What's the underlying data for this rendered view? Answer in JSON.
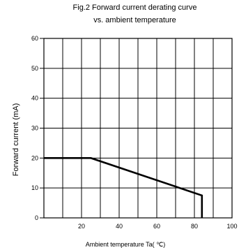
{
  "chart_data": {
    "type": "line",
    "title": "Fig.2  Forward current derating curve",
    "subtitle": "vs. ambient temperature",
    "xlabel": "Ambient temperature Ta( ℃)",
    "ylabel": "Forward current (mA)",
    "xlim": [
      0,
      100
    ],
    "ylim": [
      0,
      60
    ],
    "x_ticks": [
      20,
      40,
      60,
      80,
      100
    ],
    "x_tick_labels": [
      "20",
      "40",
      "60",
      "80",
      "100"
    ],
    "y_ticks": [
      0,
      10,
      20,
      30,
      40,
      50,
      60
    ],
    "y_tick_labels": [
      "0",
      "10",
      "20",
      "30",
      "40",
      "50",
      "60"
    ],
    "x_grid_step": 10,
    "grid": true,
    "legend": "none",
    "series": [
      {
        "x": [
          0,
          25,
          84,
          84
        ],
        "y": [
          20,
          20,
          7.5,
          0
        ]
      }
    ],
    "line_color": "#000000",
    "grid_color": "#000000"
  }
}
